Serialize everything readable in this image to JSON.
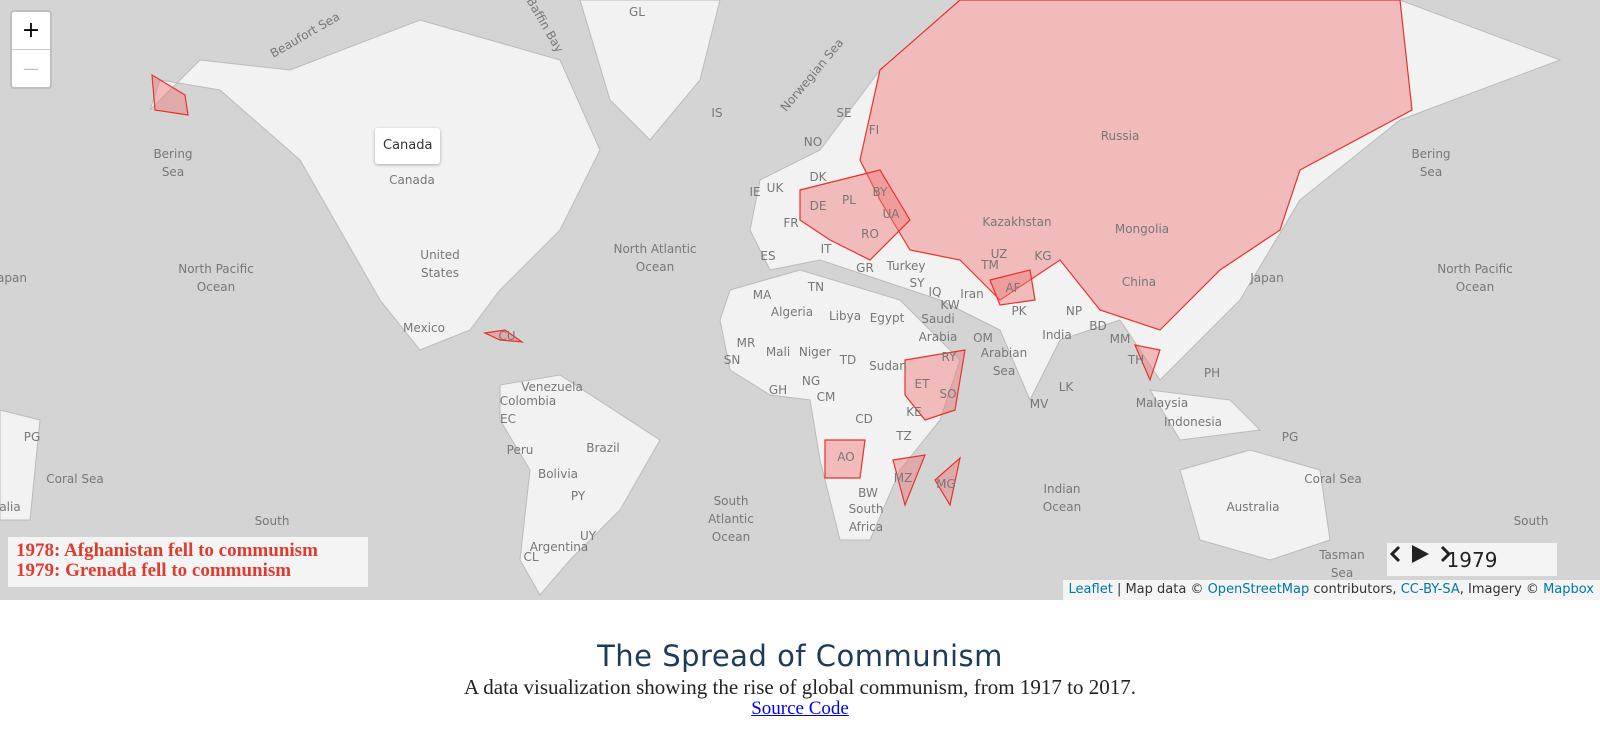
{
  "map": {
    "zoom_in": "+",
    "zoom_out": "—",
    "tooltip": "Canada",
    "labels": [
      "Beaufort Sea",
      "Baffin Bay",
      "GL",
      "Norwegian Sea",
      "IS",
      "SE",
      "NO",
      "FI",
      "Bering Sea",
      "Bering Sea",
      "Canada",
      "DK",
      "UK",
      "IE",
      "BY",
      "DE",
      "PL",
      "UA",
      "FR",
      "RO",
      "Russia",
      "Kazakhstan",
      "Mongolia",
      "IT",
      "ES",
      "GR",
      "Turkey",
      "North Atlantic Ocean",
      "United States",
      "North Pacific Ocean",
      "North Pacific Ocean",
      "Japan",
      "apan",
      "UZ",
      "TM",
      "KG",
      "China",
      "SY",
      "IQ",
      "KW",
      "Iran",
      "AF",
      "MA",
      "TN",
      "Algeria",
      "Libya",
      "Egypt",
      "Saudi Arabia",
      "PK",
      "NP",
      "BD",
      "OM",
      "India",
      "Mexico",
      "CU",
      "MM",
      "MR",
      "Mali",
      "Niger",
      "TD",
      "Sudan",
      "RY",
      "Arabian Sea",
      "TH",
      "PH",
      "SN",
      "Venezuela",
      "NG",
      "ET",
      "LK",
      "GH",
      "Colombia",
      "CM",
      "SO",
      "EC",
      "MV",
      "Malaysia",
      "KE",
      "CD",
      "Indonesia",
      "PG",
      "PG",
      "TZ",
      "Peru",
      "Brazil",
      "AO",
      "Coral Sea",
      "Coral Sea",
      "Bolivia",
      "MZ",
      "MG",
      "Indian Ocean",
      "South Atlantic Ocean",
      "PY",
      "BW",
      "Australia",
      "alia",
      "South Africa",
      "UY",
      "South",
      "South",
      "Argentina",
      "CL",
      "Tasman Sea"
    ]
  },
  "history": [
    "1978: Afghanistan fell to communism",
    "1979: Grenada fell to communism"
  ],
  "timeline": {
    "year": "1979"
  },
  "attribution": {
    "leaflet": "Leaflet",
    "map_data": " | Map data © ",
    "osm": "OpenStreetMap",
    "contributors": " contributors, ",
    "license": "CC-BY-SA",
    "imagery": ", Imagery © ",
    "mapbox": "Mapbox"
  },
  "footer": {
    "title": "The Spread of Communism",
    "subtitle": "A data visualization showing the rise of global communism, from 1917 to 2017.",
    "link": "Source Code"
  }
}
